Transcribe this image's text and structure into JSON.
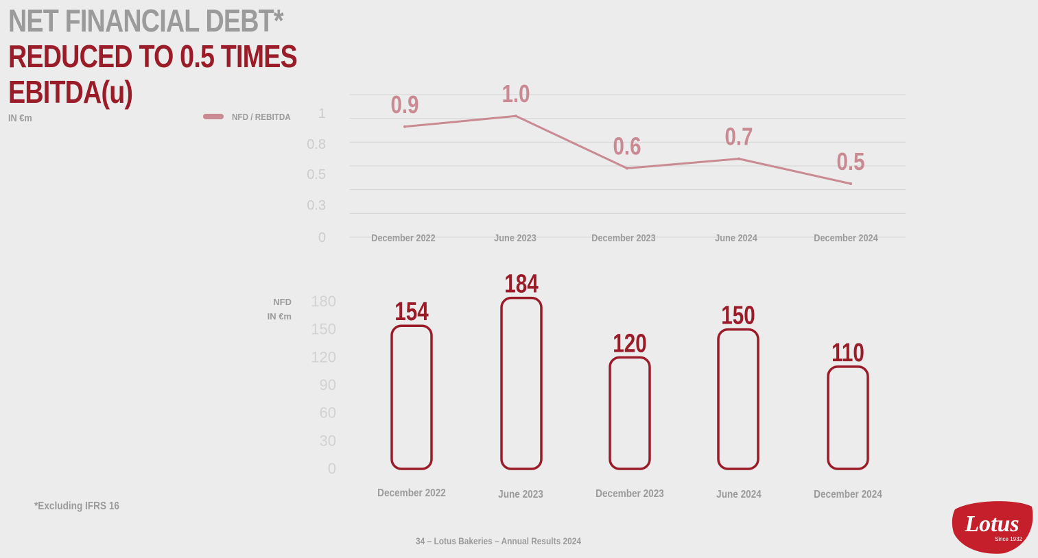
{
  "title": {
    "line1": "NET FINANCIAL DEBT*",
    "line2": "REDUCED TO 0.5 TIMES",
    "line3": "EBITDA(u)"
  },
  "unit_label": "IN €m",
  "footnote": "*Excluding IFRS 16",
  "footer": "34 – Lotus Bakeries – Annual Results 2024",
  "logo": {
    "text": "Lotus",
    "tagline": "Since 1932"
  },
  "colors": {
    "accent_red": "#9a1c28",
    "line_pink": "#c98a92",
    "grey_text": "#9b9b9b",
    "light_grey": "#cccccc"
  },
  "chart_data": [
    {
      "type": "line",
      "categories": [
        "December 2022",
        "June 2023",
        "December 2023",
        "June 2024",
        "December 2024"
      ],
      "series": [
        {
          "name": "NFD / REBITDA",
          "values": [
            0.93,
            1.02,
            0.58,
            0.66,
            0.45
          ],
          "labels": [
            "0.9",
            "1.0",
            "0.6",
            "0.7",
            "0.5"
          ]
        }
      ],
      "yticks": [
        "0",
        "0.3",
        "0.5",
        "0.8",
        "1"
      ],
      "ylim": [
        0,
        1.2
      ],
      "grid": true,
      "legend": "top-left"
    },
    {
      "type": "bar",
      "categories": [
        "December 2022",
        "June 2023",
        "December 2023",
        "June 2024",
        "December 2024"
      ],
      "values": [
        154,
        184,
        120,
        150,
        110
      ],
      "ylabel": [
        "NFD",
        "IN €m"
      ],
      "yticks": [
        "0",
        "30",
        "60",
        "90",
        "120",
        "150",
        "180"
      ],
      "ylim": [
        0,
        180
      ],
      "grid": false
    }
  ]
}
